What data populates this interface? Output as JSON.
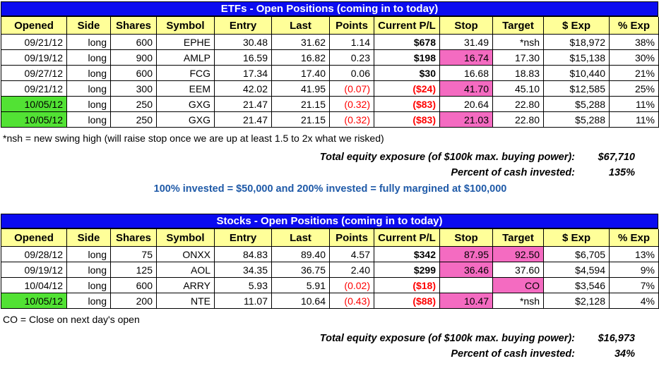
{
  "colors": {
    "title-bg": "#0B0BF0",
    "title-text": "#FFFFFF",
    "header-bg": "#FFFF99",
    "pink": "#F46BC1",
    "green": "#52E234",
    "negative": "#FF0000",
    "note-blue": "#1F5AA8"
  },
  "columns": [
    "Opened",
    "Side",
    "Shares",
    "Symbol",
    "Entry",
    "Last",
    "Points",
    "Current P/L",
    "Stop",
    "Target",
    "$ Exp",
    "% Exp"
  ],
  "column_keys": [
    "opened",
    "side",
    "shares",
    "symbol",
    "entry",
    "last",
    "points",
    "current-pl",
    "stop",
    "target",
    "dollar-exp",
    "pct-exp"
  ],
  "etf": {
    "title": "ETFs - Open Positions (coming in to today)",
    "rows": [
      [
        {
          "v": "09/21/12"
        },
        {
          "v": "long"
        },
        {
          "v": "600"
        },
        {
          "v": "EPHE"
        },
        {
          "v": "30.48"
        },
        {
          "v": "31.62"
        },
        {
          "v": "1.14"
        },
        {
          "v": "$678",
          "b": true
        },
        {
          "v": "31.49"
        },
        {
          "v": "*nsh"
        },
        {
          "v": "$18,972"
        },
        {
          "v": "38%"
        }
      ],
      [
        {
          "v": "09/19/12"
        },
        {
          "v": "long"
        },
        {
          "v": "900"
        },
        {
          "v": "AMLP"
        },
        {
          "v": "16.59"
        },
        {
          "v": "16.82"
        },
        {
          "v": "0.23"
        },
        {
          "v": "$198",
          "b": true
        },
        {
          "v": "16.74",
          "bg": "pink"
        },
        {
          "v": "17.30"
        },
        {
          "v": "$15,138"
        },
        {
          "v": "30%"
        }
      ],
      [
        {
          "v": "09/27/12"
        },
        {
          "v": "long"
        },
        {
          "v": "600"
        },
        {
          "v": "FCG"
        },
        {
          "v": "17.34"
        },
        {
          "v": "17.40"
        },
        {
          "v": "0.06"
        },
        {
          "v": "$30",
          "b": true
        },
        {
          "v": "16.68"
        },
        {
          "v": "18.83"
        },
        {
          "v": "$10,440"
        },
        {
          "v": "21%"
        }
      ],
      [
        {
          "v": "09/21/12"
        },
        {
          "v": "long"
        },
        {
          "v": "300"
        },
        {
          "v": "EEM"
        },
        {
          "v": "42.02"
        },
        {
          "v": "41.95"
        },
        {
          "v": "(0.07)",
          "neg": true
        },
        {
          "v": "($24)",
          "neg": true,
          "b": true
        },
        {
          "v": "41.70",
          "bg": "pink"
        },
        {
          "v": "45.10"
        },
        {
          "v": "$12,585"
        },
        {
          "v": "25%"
        }
      ],
      [
        {
          "v": "10/05/12",
          "bg": "green"
        },
        {
          "v": "long"
        },
        {
          "v": "250"
        },
        {
          "v": "GXG"
        },
        {
          "v": "21.47"
        },
        {
          "v": "21.15"
        },
        {
          "v": "(0.32)",
          "neg": true
        },
        {
          "v": "($83)",
          "neg": true,
          "b": true
        },
        {
          "v": "20.64"
        },
        {
          "v": "22.80"
        },
        {
          "v": "$5,288"
        },
        {
          "v": "11%"
        }
      ],
      [
        {
          "v": "10/05/12",
          "bg": "green"
        },
        {
          "v": "long"
        },
        {
          "v": "250"
        },
        {
          "v": "GXG"
        },
        {
          "v": "21.47"
        },
        {
          "v": "21.15"
        },
        {
          "v": "(0.32)",
          "neg": true
        },
        {
          "v": "($83)",
          "neg": true,
          "b": true
        },
        {
          "v": "21.03",
          "bg": "pink"
        },
        {
          "v": "22.80"
        },
        {
          "v": "$5,288"
        },
        {
          "v": "11%"
        }
      ]
    ],
    "footnote": "*nsh = new swing high (will raise stop once we are up at least 1.5 to 2x what we risked)",
    "total_label": "Total equity exposure (of $100k max. buying power):",
    "total_value": "$67,710",
    "percent_label": "Percent of cash invested:",
    "percent_value": "135%",
    "margin_note": "100% invested = $50,000 and 200% invested = fully margined at $100,000"
  },
  "stocks": {
    "title": "Stocks - Open Positions (coming in to today)",
    "rows": [
      [
        {
          "v": "09/28/12"
        },
        {
          "v": "long"
        },
        {
          "v": "75"
        },
        {
          "v": "ONXX"
        },
        {
          "v": "84.83"
        },
        {
          "v": "89.40"
        },
        {
          "v": "4.57"
        },
        {
          "v": "$342",
          "b": true
        },
        {
          "v": "87.95",
          "bg": "pink"
        },
        {
          "v": "92.50",
          "bg": "pink"
        },
        {
          "v": "$6,705"
        },
        {
          "v": "13%"
        }
      ],
      [
        {
          "v": "09/19/12"
        },
        {
          "v": "long"
        },
        {
          "v": "125"
        },
        {
          "v": "AOL"
        },
        {
          "v": "34.35"
        },
        {
          "v": "36.75"
        },
        {
          "v": "2.40"
        },
        {
          "v": "$299",
          "b": true
        },
        {
          "v": "36.46",
          "bg": "pink"
        },
        {
          "v": "37.60"
        },
        {
          "v": "$4,594"
        },
        {
          "v": "9%"
        }
      ],
      [
        {
          "v": "10/04/12"
        },
        {
          "v": "long"
        },
        {
          "v": "600"
        },
        {
          "v": "ARRY"
        },
        {
          "v": "5.93"
        },
        {
          "v": "5.91"
        },
        {
          "v": "(0.02)",
          "neg": true
        },
        {
          "v": "($18)",
          "neg": true,
          "b": true
        },
        {
          "v": ""
        },
        {
          "v": "CO",
          "bg": "pink"
        },
        {
          "v": "$3,546"
        },
        {
          "v": "7%"
        }
      ],
      [
        {
          "v": "10/05/12",
          "bg": "green"
        },
        {
          "v": "long"
        },
        {
          "v": "200"
        },
        {
          "v": "NTE"
        },
        {
          "v": "11.07"
        },
        {
          "v": "10.64"
        },
        {
          "v": "(0.43)",
          "neg": true
        },
        {
          "v": "($88)",
          "neg": true,
          "b": true
        },
        {
          "v": "10.47",
          "bg": "pink"
        },
        {
          "v": "*nsh"
        },
        {
          "v": "$2,128"
        },
        {
          "v": "4%"
        }
      ]
    ],
    "footnote": "CO = Close on next day's open",
    "total_label": "Total equity exposure (of $100k max. buying power):",
    "total_value": "$16,973",
    "percent_label": "Percent of cash invested:",
    "percent_value": "34%"
  }
}
